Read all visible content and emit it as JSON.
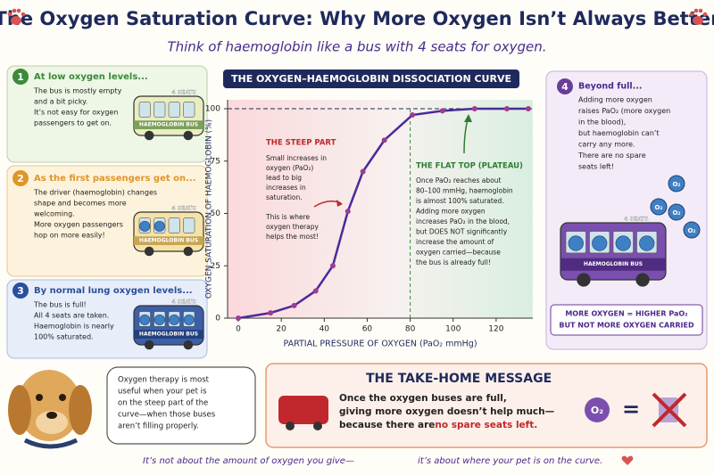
{
  "header": {
    "title": "The Oxygen Saturation Curve: Why More Oxygen Isn’t Always Better",
    "subtitle": "Think of haemoglobin like a bus with 4 seats for oxygen."
  },
  "stages": [
    {
      "number": "1",
      "heading": "At low oxygen levels...",
      "lines": [
        "The bus is mostly empty",
        "and a bit picky.",
        "It’s not easy for oxygen",
        "passengers to get on."
      ],
      "bus_seats": "4 SEATS",
      "bus_name": "HAEMOGLOBIN BUS"
    },
    {
      "number": "2",
      "heading": "As the first passengers get on...",
      "lines": [
        "The driver (haemoglobin) changes",
        "shape and becomes more",
        "welcoming.",
        "More oxygen passengers",
        "hop on more easily!"
      ],
      "bus_seats": "4 SEATS",
      "bus_name": "HAEMOGLOBIN BUS"
    },
    {
      "number": "3",
      "heading": "By normal lung oxygen levels...",
      "lines": [
        "The bus is full!",
        "All 4 seats are taken.",
        "Haemoglobin is nearly",
        "100% saturated."
      ],
      "bus_seats": "4 SEATS",
      "bus_name": "HAEMOGLOBIN BUS"
    }
  ],
  "chart": {
    "heading": "THE OXYGEN–HAEMOGLOBIN DISSOCIATION CURVE",
    "chart_data": {
      "type": "line",
      "x_label": "PARTIAL PRESSURE OF OXYGEN (PaO₂ mmHg)",
      "y_label": "OXYGEN SATURATION OF HAEMOGLOBIN (%)",
      "x": [
        0,
        15,
        26,
        36,
        44,
        51,
        58,
        68,
        81,
        95,
        110,
        125,
        135
      ],
      "series": [
        {
          "name": "Saturation",
          "color": "#4a2a9c",
          "values": [
            0,
            2.5,
            6,
            13,
            25,
            51,
            70,
            85,
            97,
            99,
            100,
            100,
            100
          ]
        }
      ],
      "xlim": [
        0,
        135
      ],
      "ylim": [
        0,
        100
      ],
      "xticks": [
        0,
        20,
        40,
        60,
        80,
        100,
        120
      ],
      "yticks": [
        0,
        25,
        50,
        75,
        100
      ],
      "hline": 100,
      "vline": 80
    },
    "steep": {
      "title": "THE STEEP PART",
      "lines": [
        "Small increases in",
        "oxygen (PaO₂)",
        "lead to big",
        "increases in",
        "saturation.",
        "",
        "This is where",
        "oxygen therapy",
        "helps the most!"
      ]
    },
    "plateau": {
      "title": "THE FLAT TOP (PLATEAU)",
      "lines": [
        "Once PaO₂ reaches about",
        "80–100 mmHg, haemoglobin",
        "is almost 100% saturated.",
        "Adding more oxygen",
        "increases PaO₂ in the blood,",
        "but DOES NOT significantly",
        "increase the amount of",
        "oxygen carried—because",
        "the bus is already full!"
      ]
    }
  },
  "beyond": {
    "number": "4",
    "heading": "Beyond full...",
    "lines": [
      "Adding more oxygen",
      "raises PaO₂ (more oxygen",
      "in the blood),",
      "but haemoglobin can’t",
      "carry any more.",
      "There are no spare",
      "seats left!"
    ],
    "bubble": "O₂",
    "bus_seats": "4 SEATS",
    "bus_name": "HAEMOGLOBIN BUS",
    "banner": [
      "MORE OXYGEN = HIGHER PaO₂",
      "BUT NOT MORE OXYGEN CARRIED"
    ]
  },
  "speech": [
    "Oxygen therapy is most",
    "useful when your pet is",
    "on the steep part of the",
    "curve—when those buses",
    "aren’t filling properly."
  ],
  "takehome": {
    "title": "THE TAKE-HOME MESSAGE",
    "lines": [
      "Once the oxygen buses are full,",
      "giving more oxygen doesn’t help much—",
      "because there are "
    ],
    "highlight": "no spare seats left.",
    "symbol": "O₂",
    "equals": "="
  },
  "footer": [
    "It’s not about the amount of oxygen you give—",
    "it’s about where your pet is on the curve."
  ]
}
